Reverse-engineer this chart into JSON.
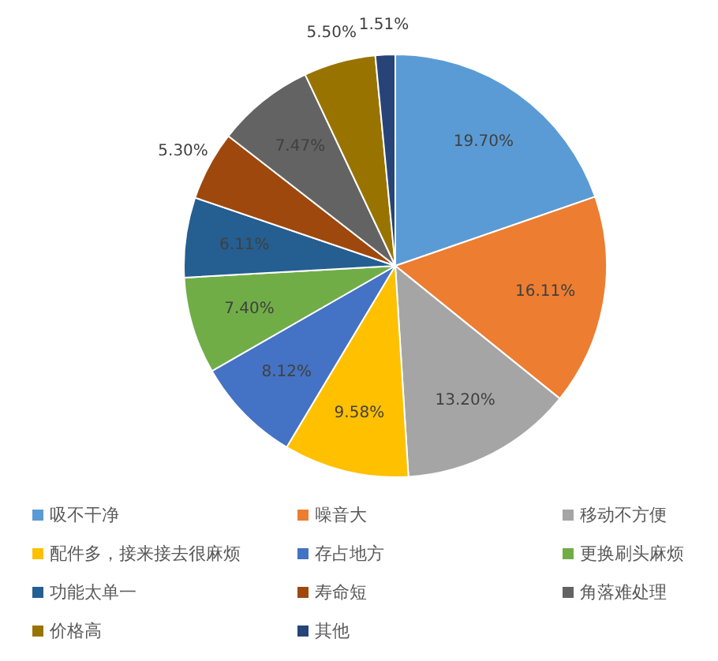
{
  "chart_data": {
    "type": "pie",
    "categories": [
      "吸不干净",
      "噪音大",
      "移动不方便",
      "配件多，接来接去很麻烦",
      "存占地方",
      "更换刷头麻烦",
      "功能太单一",
      "寿命短",
      "角落难处理",
      "价格高",
      "其他"
    ],
    "values": [
      19.7,
      16.11,
      13.2,
      9.58,
      8.12,
      7.4,
      6.11,
      5.3,
      7.47,
      5.5,
      1.51
    ],
    "value_labels": [
      "19.70%",
      "16.11%",
      "13.20%",
      "9.58%",
      "8.12%",
      "7.40%",
      "6.11%",
      "5.30%",
      "7.47%",
      "5.50%",
      "1.51%"
    ],
    "colors": [
      "#5b9bd5",
      "#ed7d31",
      "#a5a5a5",
      "#ffc000",
      "#4472c4",
      "#70ad47",
      "#255e91",
      "#9e480e",
      "#636363",
      "#997300",
      "#264478"
    ],
    "legend": "bottom"
  }
}
